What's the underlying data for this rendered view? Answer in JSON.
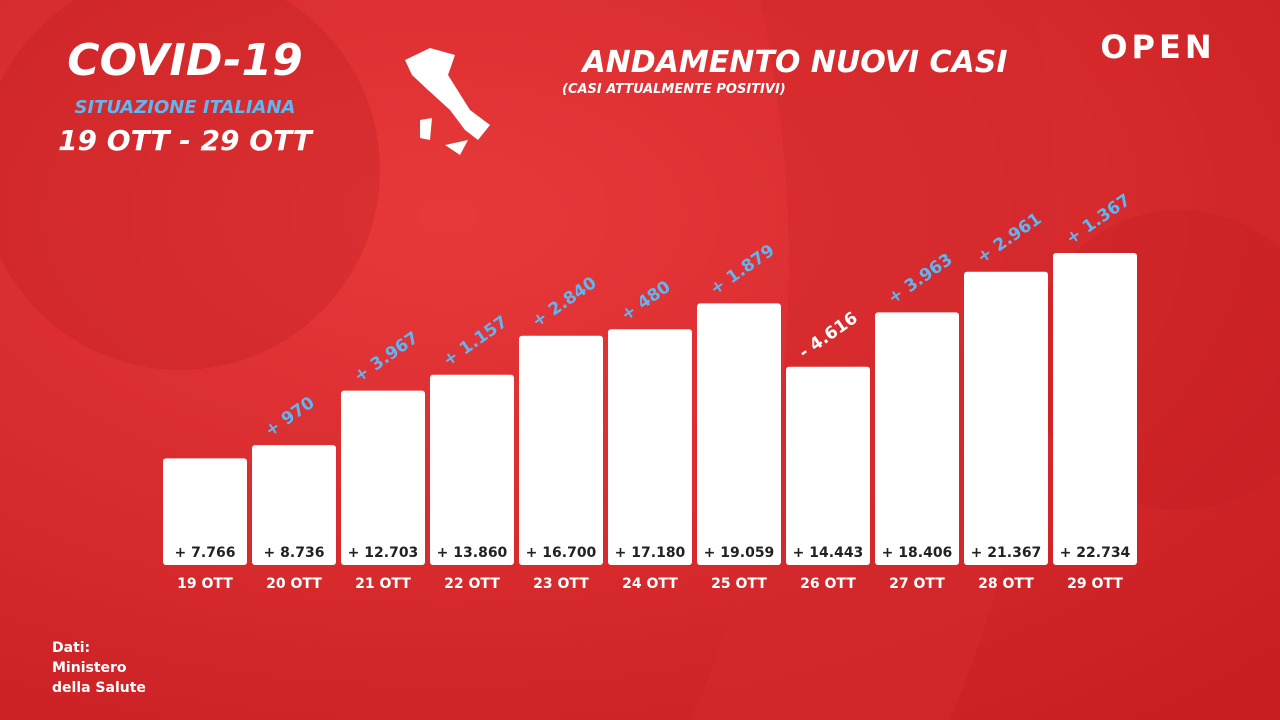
{
  "header": {
    "title": "COVID-19",
    "subtitle": "SITUAZIONE ITALIANA",
    "period": "19 OTT - 29 OTT",
    "brand": "OPEN"
  },
  "chart_data": {
    "type": "bar",
    "title": "ANDAMENTO NUOVI CASI",
    "subtitle": "(CASI ATTUALMENTE POSITIVI)",
    "categories": [
      "19 OTT",
      "20 OTT",
      "21 OTT",
      "22 OTT",
      "23 OTT",
      "24 OTT",
      "25 OTT",
      "26 OTT",
      "27 OTT",
      "28 OTT",
      "29 OTT"
    ],
    "values": [
      7766,
      8736,
      12703,
      13860,
      16700,
      17180,
      19059,
      14443,
      18406,
      21367,
      22734
    ],
    "value_labels": [
      "+ 7.766",
      "+ 8.736",
      "+ 12.703",
      "+ 13.860",
      "+ 16.700",
      "+ 17.180",
      "+ 19.059",
      "+ 14.443",
      "+ 18.406",
      "+ 21.367",
      "+ 22.734"
    ],
    "color": "#ffffff",
    "changes": {
      "values": [
        null,
        970,
        3967,
        1157,
        2840,
        480,
        1879,
        -4616,
        3963,
        2961,
        1367
      ],
      "value_labels": [
        null,
        "+ 970",
        "+ 3.967",
        "+ 1.157",
        "+ 2.840",
        "+ 480",
        "+ 1.879",
        "- 4.616",
        "+ 3.963",
        "+ 2.961",
        "+ 1.367"
      ],
      "colors": [
        null,
        "#5fb6f2",
        "#5fb6f2",
        "#5fb6f2",
        "#5fb6f2",
        "#5fb6f2",
        "#5fb6f2",
        "#ffffff",
        "#5fb6f2",
        "#5fb6f2",
        "#5fb6f2"
      ]
    }
  },
  "footer": {
    "lines": [
      "Dati:",
      "Ministero",
      "della Salute"
    ]
  }
}
